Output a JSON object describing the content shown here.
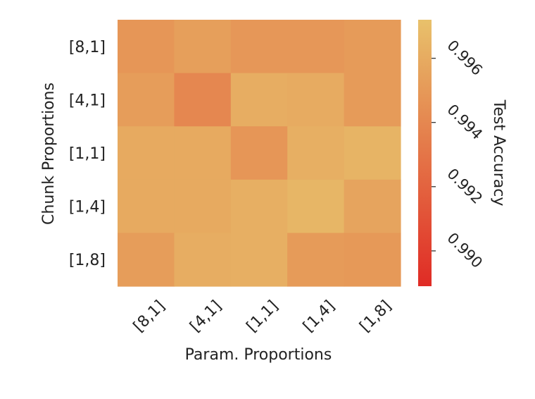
{
  "chart_data": {
    "type": "heatmap",
    "title": "",
    "xlabel": "Param. Proportions",
    "ylabel": "Chunk Proportions",
    "x_categories": [
      "[8,1]",
      "[4,1]",
      "[1,1]",
      "[1,4]",
      "[1,8]"
    ],
    "y_categories": [
      "[8,1]",
      "[4,1]",
      "[1,1]",
      "[1,4]",
      "[1,8]"
    ],
    "values": [
      [
        0.9948,
        0.9953,
        0.9949,
        0.9949,
        0.9951
      ],
      [
        0.9952,
        0.994,
        0.9961,
        0.996,
        0.9951
      ],
      [
        0.9959,
        0.9959,
        0.9948,
        0.9962,
        0.9965
      ],
      [
        0.9959,
        0.9959,
        0.9962,
        0.9966,
        0.9956
      ],
      [
        0.9952,
        0.9961,
        0.9962,
        0.9951,
        0.995
      ]
    ],
    "colorbar": {
      "label": "Test Accuracy",
      "min": 0.9889,
      "max": 0.9972,
      "ticks": [
        0.99,
        0.992,
        0.994,
        0.996
      ],
      "tick_labels": [
        "0.990",
        "0.992",
        "0.994",
        "0.996"
      ],
      "colors": [
        "#e02b25",
        "#e8c16b"
      ]
    },
    "grid": false,
    "legend": "none"
  }
}
